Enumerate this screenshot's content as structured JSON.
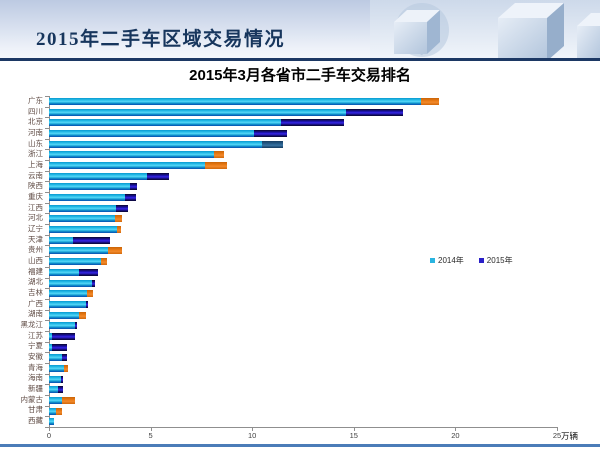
{
  "header": {
    "title": "2015年二手车区域交易情况"
  },
  "chart_data": {
    "type": "bar",
    "orientation": "horizontal",
    "title": "2015年3月各省市二手车交易排名",
    "unit": "万辆",
    "xlim": [
      0,
      25
    ],
    "x_ticks": [
      "0",
      "5",
      "10",
      "15",
      "20",
      "25"
    ],
    "legend": [
      {
        "label": "2014年",
        "color": "#29b4e0"
      },
      {
        "label": "2015年",
        "color": "#2a1fc8"
      }
    ],
    "colors": {
      "bar_cyan": "#27bce8",
      "tip_navy": "#2a1ed0",
      "tip_steel": "#265a86",
      "tip_orange": "#e8760f",
      "header_title": "#17365d",
      "footer_line": "#4b7cb8"
    },
    "rows": [
      {
        "province": "广东",
        "cyan_end": 18.3,
        "tip_end": 19.2,
        "tip_color": "orange"
      },
      {
        "province": "四川",
        "cyan_end": 14.6,
        "tip_end": 17.4,
        "tip_color": "navy"
      },
      {
        "province": "北京",
        "cyan_end": 11.4,
        "tip_end": 14.5,
        "tip_color": "navy"
      },
      {
        "province": "河南",
        "cyan_end": 10.1,
        "tip_end": 11.7,
        "tip_color": "navy"
      },
      {
        "province": "山东",
        "cyan_end": 10.5,
        "tip_end": 11.5,
        "tip_color": "steel"
      },
      {
        "province": "浙江",
        "cyan_end": 8.1,
        "tip_end": 8.6,
        "tip_color": "orange"
      },
      {
        "province": "上海",
        "cyan_end": 7.7,
        "tip_end": 8.75,
        "tip_color": "orange"
      },
      {
        "province": "云南",
        "cyan_end": 4.8,
        "tip_end": 5.9,
        "tip_color": "navy"
      },
      {
        "province": "陕西",
        "cyan_end": 4.0,
        "tip_end": 4.35,
        "tip_color": "navy"
      },
      {
        "province": "重庆",
        "cyan_end": 3.75,
        "tip_end": 4.3,
        "tip_color": "navy"
      },
      {
        "province": "江西",
        "cyan_end": 3.3,
        "tip_end": 3.9,
        "tip_color": "navy"
      },
      {
        "province": "河北",
        "cyan_end": 3.25,
        "tip_end": 3.6,
        "tip_color": "orange"
      },
      {
        "province": "辽宁",
        "cyan_end": 3.35,
        "tip_end": 3.55,
        "tip_color": "orange"
      },
      {
        "province": "天津",
        "cyan_end": 1.2,
        "tip_end": 3.0,
        "tip_color": "navy"
      },
      {
        "province": "贵州",
        "cyan_end": 2.9,
        "tip_end": 3.6,
        "tip_color": "orange"
      },
      {
        "province": "山西",
        "cyan_end": 2.55,
        "tip_end": 2.85,
        "tip_color": "orange"
      },
      {
        "province": "福建",
        "cyan_end": 1.5,
        "tip_end": 2.4,
        "tip_color": "navy"
      },
      {
        "province": "湖北",
        "cyan_end": 2.1,
        "tip_end": 2.25,
        "tip_color": "navy"
      },
      {
        "province": "吉林",
        "cyan_end": 1.85,
        "tip_end": 2.15,
        "tip_color": "orange"
      },
      {
        "province": "广西",
        "cyan_end": 1.8,
        "tip_end": 1.9,
        "tip_color": "navy"
      },
      {
        "province": "湖南",
        "cyan_end": 1.5,
        "tip_end": 1.8,
        "tip_color": "orange"
      },
      {
        "province": "黑龙江",
        "cyan_end": 1.3,
        "tip_end": 1.4,
        "tip_color": "navy"
      },
      {
        "province": "江苏",
        "cyan_end": 0.15,
        "tip_end": 1.3,
        "tip_color": "navy"
      },
      {
        "province": "宁夏",
        "cyan_end": 0.15,
        "tip_end": 0.9,
        "tip_color": "navy"
      },
      {
        "province": "安徽",
        "cyan_end": 0.65,
        "tip_end": 0.9,
        "tip_color": "navy"
      },
      {
        "province": "青海",
        "cyan_end": 0.75,
        "tip_end": 0.95,
        "tip_color": "orange"
      },
      {
        "province": "海南",
        "cyan_end": 0.6,
        "tip_end": 0.7,
        "tip_color": "navy"
      },
      {
        "province": "新疆",
        "cyan_end": 0.45,
        "tip_end": 0.7,
        "tip_color": "navy"
      },
      {
        "province": "内蒙古",
        "cyan_end": 0.65,
        "tip_end": 1.3,
        "tip_color": "orange"
      },
      {
        "province": "甘肃",
        "cyan_end": 0.35,
        "tip_end": 0.65,
        "tip_color": "orange"
      },
      {
        "province": "西藏",
        "cyan_end": 0.25,
        "tip_end": 0.25,
        "tip_color": "none"
      }
    ]
  }
}
